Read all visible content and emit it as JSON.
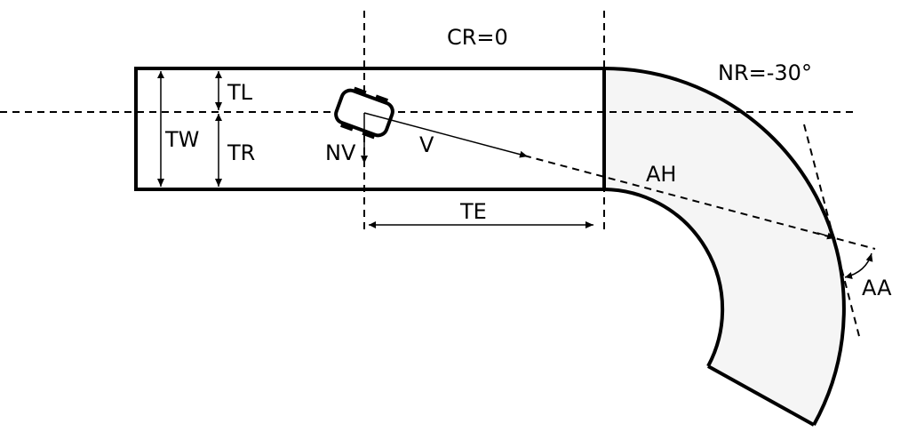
{
  "labels": {
    "cr": "CR=0",
    "nr": "NR=-30°",
    "tl": "TL",
    "tr": "TR",
    "tw": "TW",
    "nv": "NV",
    "v": "V",
    "ah": "AH",
    "te": "TE",
    "aa": "AA"
  },
  "colors": {
    "road_fill": "#f5f5f5",
    "stroke": "#000000"
  }
}
